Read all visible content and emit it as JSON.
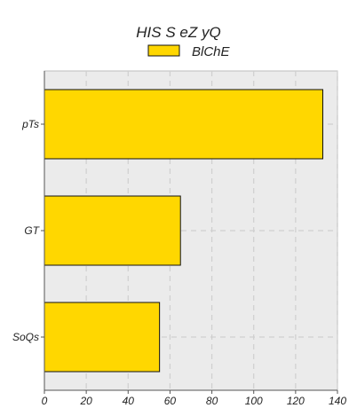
{
  "chart_data": {
    "type": "bar",
    "orientation": "horizontal",
    "title": "HIS S eZ yQ",
    "xlabel": "",
    "ylabel": "",
    "categories": [
      "pTs",
      "GT",
      "SoQs"
    ],
    "series": [
      {
        "name": "BlChE",
        "values": [
          133,
          65,
          55
        ],
        "color": "#FFD700"
      }
    ],
    "xlim": [
      0,
      140
    ],
    "xticks": [
      "0",
      "20",
      "40",
      "60",
      "80",
      "100",
      "120",
      "140"
    ],
    "grid": true,
    "legend_position": "top-center",
    "colors": {
      "background": "#EBEBEB",
      "bar": "#FFD700",
      "bar_edge": "#111111",
      "grid": "#CFCFCF"
    }
  }
}
